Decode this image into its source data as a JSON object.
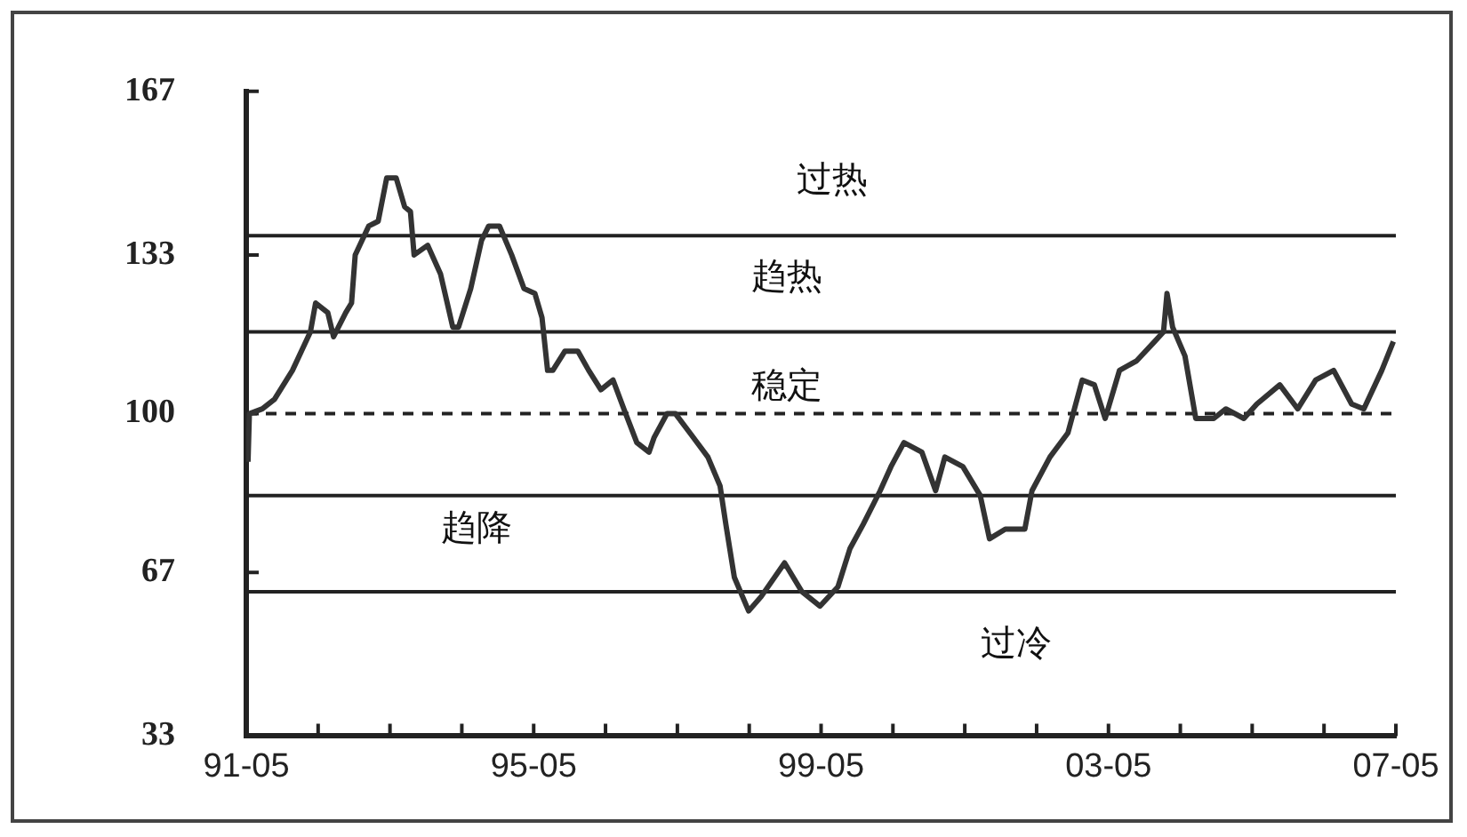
{
  "chart_data": {
    "type": "line",
    "color": "#333333",
    "marker": "none",
    "grid": false,
    "legend": false,
    "x": [
      "1991-05-10",
      "1991-05-17",
      "1991-07-22",
      "1991-09-23",
      "1991-12-23",
      "1992-03-23",
      "1992-04-19",
      "1992-06-20",
      "1992-07-19",
      "1992-09-20",
      "1992-10-19",
      "1992-11-07",
      "1993-01-15",
      "1993-03-02",
      "1993-04-15",
      "1993-06-02",
      "1993-07-15",
      "1993-08-14",
      "1993-09-02",
      "1993-11-10",
      "1994-01-15",
      "1994-03-16",
      "1994-04-15",
      "1994-06-16",
      "1994-08-10",
      "1994-09-16",
      "1994-11-10",
      "1995-01-11",
      "1995-03-13",
      "1995-05-07",
      "1995-06-13",
      "1995-07-11",
      "1995-08-07",
      "1995-10-08",
      "1995-12-13",
      "1996-02-07",
      "1996-04-08",
      "1996-06-09",
      "1996-08-03",
      "1996-10-08",
      "1996-12-09",
      "1997-01-04",
      "1997-03-09",
      "1997-04-22",
      "1997-07-04",
      "1997-10-04",
      "1997-12-05",
      "1998-01-04",
      "1998-02-17",
      "1998-04-29",
      "1998-07-01",
      "1998-10-29",
      "1999-01-26",
      "1999-04-26",
      "1999-07-26",
      "1999-09-27",
      "1999-12-02",
      "2000-02-28",
      "2000-04-22",
      "2000-06-27",
      "2000-09-27",
      "2000-12-05",
      "2001-01-22",
      "2001-04-22",
      "2001-07-19",
      "2001-09-05",
      "2001-11-25",
      "2002-03-02",
      "2002-04-08",
      "2002-07-08",
      "2002-10-08",
      "2002-12-20",
      "2003-02-21",
      "2003-04-15",
      "2003-06-27",
      "2003-09-23",
      "2003-12-23",
      "2004-02-07",
      "2004-02-25",
      "2004-03-23",
      "2004-05-25",
      "2004-07-19",
      "2004-10-19",
      "2004-12-20",
      "2005-03-20",
      "2005-05-25",
      "2005-09-20",
      "2005-12-20",
      "2006-03-20",
      "2006-06-20",
      "2006-09-20",
      "2006-11-21",
      "2007-02-21",
      "2007-04-19"
    ],
    "values": [
      90,
      100,
      101,
      103,
      109,
      117,
      123,
      121,
      116,
      121,
      123,
      133,
      139,
      140,
      149,
      149,
      143,
      142,
      133,
      135,
      129,
      118,
      118,
      126,
      136,
      139,
      139,
      133,
      126,
      125,
      120,
      109,
      109,
      113,
      113,
      109,
      105,
      107,
      101,
      94,
      92,
      95,
      100,
      100,
      96,
      91,
      85,
      77,
      66,
      59,
      62,
      69,
      63,
      60,
      64,
      72,
      77,
      84,
      89,
      94,
      92,
      84,
      91,
      89,
      83,
      74,
      76,
      76,
      84,
      91,
      96,
      107,
      106,
      99,
      109,
      111,
      115,
      117,
      125,
      118,
      112,
      99,
      99,
      101,
      99,
      102,
      106,
      101,
      107,
      109,
      102,
      101,
      109,
      115
    ],
    "line_style": "solid",
    "xlim": [
      "1991-05",
      "2007-05"
    ],
    "xticks": [
      {
        "value": "1991-05",
        "label": "91-05"
      },
      {
        "value": "1992-05",
        "label": null
      },
      {
        "value": "1993-05",
        "label": null
      },
      {
        "value": "1994-05",
        "label": null
      },
      {
        "value": "1995-05",
        "label": "95-05"
      },
      {
        "value": "1996-05",
        "label": null
      },
      {
        "value": "1997-05",
        "label": null
      },
      {
        "value": "1998-05",
        "label": null
      },
      {
        "value": "1999-05",
        "label": "99-05"
      },
      {
        "value": "2000-05",
        "label": null
      },
      {
        "value": "2001-05",
        "label": null
      },
      {
        "value": "2002-05",
        "label": null
      },
      {
        "value": "2003-05",
        "label": "03-05"
      },
      {
        "value": "2004-05",
        "label": null
      },
      {
        "value": "2005-05",
        "label": null
      },
      {
        "value": "2006-05",
        "label": null
      },
      {
        "value": "2007-05",
        "label": "07-05"
      }
    ],
    "ylim": [
      33,
      167
    ],
    "yticks": [
      33,
      67,
      100,
      133,
      167
    ],
    "ref_lines": [
      {
        "axis": "y",
        "value": 137,
        "color": "#222222",
        "line_style": "solid"
      },
      {
        "axis": "y",
        "value": 117,
        "color": "#222222",
        "line_style": "solid"
      },
      {
        "axis": "y",
        "value": 100,
        "color": "#222222",
        "line_style": "dashed"
      },
      {
        "axis": "y",
        "value": 83,
        "color": "#222222",
        "line_style": "solid"
      },
      {
        "axis": "y",
        "value": 63,
        "color": "#222222",
        "line_style": "solid"
      }
    ],
    "annotations": [
      "过热",
      "趋热",
      "稳定",
      "趋降",
      "过冷"
    ]
  }
}
